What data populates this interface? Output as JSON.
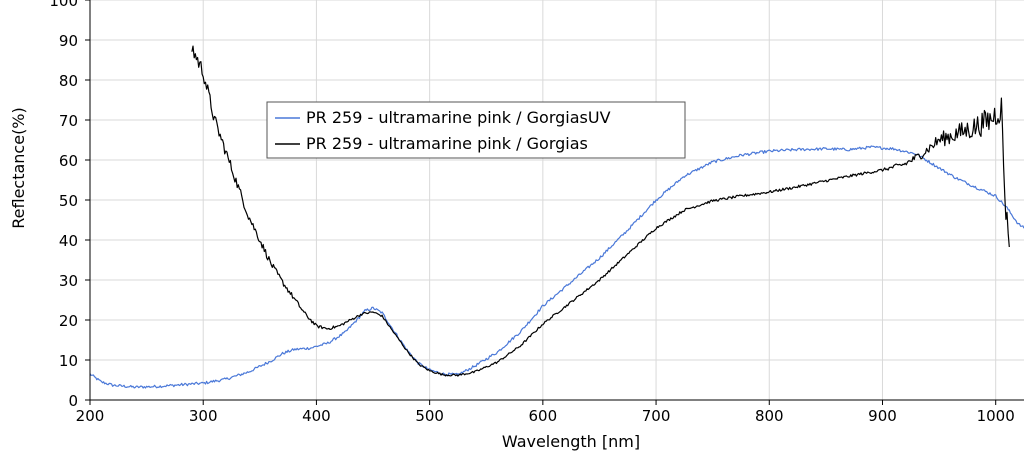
{
  "chart_data": {
    "type": "line",
    "xlabel": "Wavelength [nm]",
    "ylabel": "Reflectance(%)",
    "xlim": [
      200,
      1025
    ],
    "ylim": [
      0,
      100
    ],
    "x_ticks": [
      200,
      300,
      400,
      500,
      600,
      700,
      800,
      900,
      1000
    ],
    "y_ticks": [
      0,
      10,
      20,
      30,
      40,
      50,
      60,
      70,
      80,
      90,
      100
    ],
    "grid": true,
    "legend_position": "upper-left-center",
    "series": [
      {
        "name": "PR 259 - ultramarine pink / GorgiasUV",
        "color": "#4a78d8",
        "noise": 0.35,
        "points": [
          [
            200,
            6.5
          ],
          [
            210,
            4.5
          ],
          [
            220,
            3.7
          ],
          [
            240,
            3.2
          ],
          [
            260,
            3.4
          ],
          [
            280,
            3.8
          ],
          [
            300,
            4.2
          ],
          [
            320,
            5.2
          ],
          [
            340,
            7.0
          ],
          [
            360,
            9.8
          ],
          [
            370,
            11.6
          ],
          [
            380,
            12.6
          ],
          [
            395,
            13.0
          ],
          [
            410,
            14.2
          ],
          [
            425,
            16.8
          ],
          [
            435,
            19.8
          ],
          [
            443,
            22.3
          ],
          [
            450,
            23.0
          ],
          [
            458,
            21.8
          ],
          [
            468,
            17.5
          ],
          [
            480,
            12.5
          ],
          [
            490,
            9.2
          ],
          [
            500,
            7.5
          ],
          [
            512,
            6.5
          ],
          [
            525,
            6.3
          ],
          [
            540,
            8.5
          ],
          [
            560,
            12.0
          ],
          [
            580,
            17.0
          ],
          [
            600,
            23.5
          ],
          [
            625,
            29.5
          ],
          [
            650,
            35.5
          ],
          [
            675,
            42.5
          ],
          [
            700,
            50.0
          ],
          [
            725,
            56.0
          ],
          [
            750,
            59.5
          ],
          [
            775,
            61.2
          ],
          [
            800,
            62.2
          ],
          [
            825,
            62.6
          ],
          [
            850,
            62.8
          ],
          [
            870,
            62.6
          ],
          [
            890,
            63.2
          ],
          [
            910,
            62.8
          ],
          [
            930,
            61.5
          ],
          [
            950,
            58.0
          ],
          [
            965,
            55.5
          ],
          [
            980,
            53.5
          ],
          [
            1000,
            51.0
          ],
          [
            1010,
            48.0
          ],
          [
            1020,
            44.0
          ],
          [
            1025,
            43.0
          ]
        ]
      },
      {
        "name": "PR 259 - ultramarine pink / Gorgias",
        "color": "#000000",
        "noise_profile": [
          [
            290,
            2.2
          ],
          [
            320,
            1.3
          ],
          [
            360,
            0.8
          ],
          [
            400,
            0.4
          ],
          [
            460,
            0.25
          ],
          [
            900,
            0.35
          ],
          [
            940,
            1.2
          ],
          [
            960,
            2.2
          ],
          [
            1010,
            3.8
          ]
        ],
        "points": [
          [
            290,
            88
          ],
          [
            300,
            82
          ],
          [
            310,
            70
          ],
          [
            320,
            62
          ],
          [
            330,
            54
          ],
          [
            340,
            46
          ],
          [
            350,
            40
          ],
          [
            360,
            34
          ],
          [
            370,
            29.5
          ],
          [
            380,
            25.5
          ],
          [
            390,
            21.5
          ],
          [
            400,
            18.5
          ],
          [
            410,
            17.8
          ],
          [
            420,
            18.5
          ],
          [
            430,
            20.0
          ],
          [
            440,
            21.5
          ],
          [
            450,
            22.0
          ],
          [
            458,
            21.0
          ],
          [
            468,
            17.0
          ],
          [
            480,
            12.3
          ],
          [
            490,
            9.0
          ],
          [
            500,
            7.3
          ],
          [
            512,
            6.3
          ],
          [
            525,
            6.2
          ],
          [
            540,
            7.0
          ],
          [
            560,
            9.5
          ],
          [
            580,
            13.5
          ],
          [
            600,
            19.0
          ],
          [
            625,
            24.5
          ],
          [
            650,
            30.0
          ],
          [
            675,
            36.5
          ],
          [
            700,
            43.0
          ],
          [
            725,
            47.5
          ],
          [
            750,
            49.8
          ],
          [
            775,
            51.0
          ],
          [
            800,
            52.0
          ],
          [
            825,
            53.3
          ],
          [
            850,
            54.8
          ],
          [
            875,
            56.2
          ],
          [
            900,
            57.5
          ],
          [
            920,
            59.0
          ],
          [
            935,
            61.5
          ],
          [
            950,
            65.0
          ],
          [
            965,
            66.5
          ],
          [
            980,
            68.0
          ],
          [
            995,
            70.0
          ],
          [
            1005,
            73.0
          ],
          [
            1008,
            52.0
          ],
          [
            1010,
            44.0
          ],
          [
            1012,
            41.0
          ]
        ]
      }
    ]
  }
}
